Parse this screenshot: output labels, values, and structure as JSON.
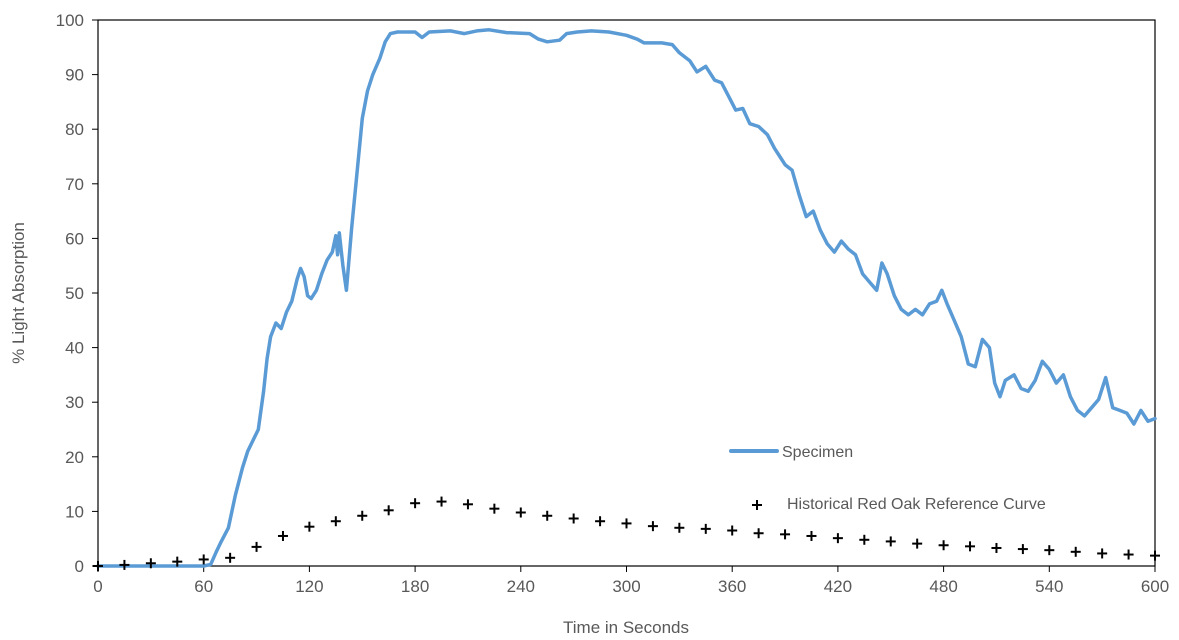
{
  "chart_data": {
    "type": "line",
    "xlabel": "Time in Seconds",
    "ylabel": "% Light Absorption",
    "xlim": [
      0,
      600
    ],
    "ylim": [
      0,
      100
    ],
    "x_ticks": [
      "0",
      "60",
      "120",
      "180",
      "240",
      "300",
      "360",
      "420",
      "480",
      "540",
      "600"
    ],
    "y_ticks": [
      "0",
      "10",
      "20",
      "30",
      "40",
      "50",
      "60",
      "70",
      "80",
      "90",
      "100"
    ],
    "grid": false,
    "legend_position": "lower-right",
    "series": [
      {
        "name": "Specimen",
        "style": "line",
        "color": "#5b9bd5",
        "points": [
          [
            0,
            0
          ],
          [
            30,
            0
          ],
          [
            60,
            0
          ],
          [
            64,
            0.3
          ],
          [
            67,
            2.5
          ],
          [
            70,
            4.5
          ],
          [
            74,
            7
          ],
          [
            78,
            13
          ],
          [
            82,
            18
          ],
          [
            85,
            21
          ],
          [
            88,
            23
          ],
          [
            91,
            25
          ],
          [
            94,
            32
          ],
          [
            96,
            38
          ],
          [
            98,
            42
          ],
          [
            101,
            44.5
          ],
          [
            104,
            43.5
          ],
          [
            107,
            46.5
          ],
          [
            110,
            48.5
          ],
          [
            113,
            52.5
          ],
          [
            115,
            54.5
          ],
          [
            117,
            53
          ],
          [
            119,
            49.5
          ],
          [
            121,
            49
          ],
          [
            124,
            50.5
          ],
          [
            127,
            53.5
          ],
          [
            130,
            56
          ],
          [
            133,
            57.5
          ],
          [
            135,
            60.5
          ],
          [
            136,
            57
          ],
          [
            137,
            61
          ],
          [
            139,
            55
          ],
          [
            141,
            50.5
          ],
          [
            144,
            62
          ],
          [
            147,
            72
          ],
          [
            150,
            82
          ],
          [
            153,
            87
          ],
          [
            156,
            90
          ],
          [
            160,
            93
          ],
          [
            163,
            96
          ],
          [
            166,
            97.5
          ],
          [
            170,
            97.8
          ],
          [
            180,
            97.8
          ],
          [
            184,
            96.8
          ],
          [
            188,
            97.8
          ],
          [
            200,
            98
          ],
          [
            208,
            97.5
          ],
          [
            215,
            98
          ],
          [
            222,
            98.2
          ],
          [
            232,
            97.7
          ],
          [
            245,
            97.5
          ],
          [
            250,
            96.5
          ],
          [
            255,
            96
          ],
          [
            262,
            96.3
          ],
          [
            266,
            97.5
          ],
          [
            272,
            97.8
          ],
          [
            280,
            98
          ],
          [
            290,
            97.8
          ],
          [
            300,
            97.2
          ],
          [
            306,
            96.5
          ],
          [
            310,
            95.8
          ],
          [
            320,
            95.8
          ],
          [
            326,
            95.5
          ],
          [
            330,
            94
          ],
          [
            336,
            92.5
          ],
          [
            340,
            90.5
          ],
          [
            345,
            91.5
          ],
          [
            350,
            89
          ],
          [
            354,
            88.5
          ],
          [
            358,
            86
          ],
          [
            362,
            83.5
          ],
          [
            366,
            83.8
          ],
          [
            370,
            81
          ],
          [
            375,
            80.5
          ],
          [
            380,
            79
          ],
          [
            384,
            76.5
          ],
          [
            387,
            75
          ],
          [
            390,
            73.5
          ],
          [
            394,
            72.5
          ],
          [
            398,
            68
          ],
          [
            402,
            64
          ],
          [
            406,
            65
          ],
          [
            410,
            61.5
          ],
          [
            414,
            59
          ],
          [
            418,
            57.5
          ],
          [
            422,
            59.5
          ],
          [
            426,
            58
          ],
          [
            430,
            57
          ],
          [
            434,
            53.5
          ],
          [
            438,
            52
          ],
          [
            442,
            50.5
          ],
          [
            445,
            55.5
          ],
          [
            448,
            53.5
          ],
          [
            452,
            49.5
          ],
          [
            456,
            47
          ],
          [
            460,
            46
          ],
          [
            464,
            47
          ],
          [
            468,
            46
          ],
          [
            472,
            48
          ],
          [
            476,
            48.5
          ],
          [
            479,
            50.5
          ],
          [
            482,
            48
          ],
          [
            486,
            45
          ],
          [
            490,
            42
          ],
          [
            494,
            37
          ],
          [
            498,
            36.5
          ],
          [
            502,
            41.5
          ],
          [
            506,
            40
          ],
          [
            509,
            33.5
          ],
          [
            512,
            31
          ],
          [
            515,
            34
          ],
          [
            520,
            35
          ],
          [
            524,
            32.5
          ],
          [
            528,
            32
          ],
          [
            532,
            34
          ],
          [
            536,
            37.5
          ],
          [
            540,
            36
          ],
          [
            544,
            33.5
          ],
          [
            548,
            35
          ],
          [
            552,
            31
          ],
          [
            556,
            28.5
          ],
          [
            560,
            27.5
          ],
          [
            564,
            29
          ],
          [
            568,
            30.5
          ],
          [
            572,
            34.5
          ],
          [
            576,
            29
          ],
          [
            580,
            28.5
          ],
          [
            584,
            28
          ],
          [
            588,
            26
          ],
          [
            592,
            28.5
          ],
          [
            596,
            26.5
          ],
          [
            600,
            27
          ]
        ]
      },
      {
        "name": "Historical Red Oak Reference Curve",
        "style": "markers",
        "marker": "+",
        "color": "#000000",
        "points": [
          [
            0,
            0
          ],
          [
            15,
            0.2
          ],
          [
            30,
            0.5
          ],
          [
            45,
            0.8
          ],
          [
            60,
            1.2
          ],
          [
            75,
            1.5
          ],
          [
            90,
            3.5
          ],
          [
            105,
            5.5
          ],
          [
            120,
            7.2
          ],
          [
            135,
            8.2
          ],
          [
            150,
            9.2
          ],
          [
            165,
            10.2
          ],
          [
            180,
            11.5
          ],
          [
            195,
            11.8
          ],
          [
            210,
            11.3
          ],
          [
            225,
            10.5
          ],
          [
            240,
            9.8
          ],
          [
            255,
            9.2
          ],
          [
            270,
            8.7
          ],
          [
            285,
            8.2
          ],
          [
            300,
            7.8
          ],
          [
            315,
            7.3
          ],
          [
            330,
            7
          ],
          [
            345,
            6.8
          ],
          [
            360,
            6.5
          ],
          [
            375,
            6
          ],
          [
            390,
            5.8
          ],
          [
            405,
            5.5
          ],
          [
            420,
            5.1
          ],
          [
            435,
            4.8
          ],
          [
            450,
            4.5
          ],
          [
            465,
            4.1
          ],
          [
            480,
            3.8
          ],
          [
            495,
            3.6
          ],
          [
            510,
            3.3
          ],
          [
            525,
            3.1
          ],
          [
            540,
            2.9
          ],
          [
            555,
            2.6
          ],
          [
            570,
            2.3
          ],
          [
            585,
            2.1
          ],
          [
            600,
            1.9
          ]
        ]
      }
    ]
  }
}
